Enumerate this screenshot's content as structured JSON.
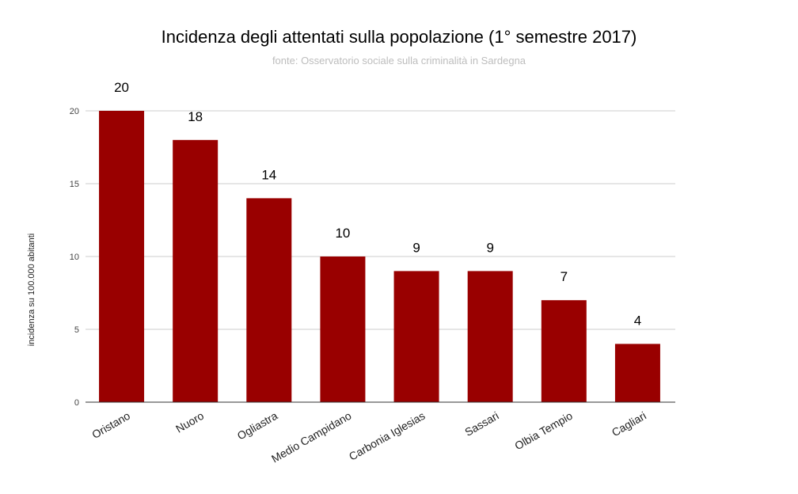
{
  "chart_data": {
    "type": "bar",
    "title": "Incidenza degli attentati sulla popolazione (1° semestre  2017)",
    "subtitle": "fonte: Osservatorio sociale sulla criminalità in Sardegna",
    "xlabel": "",
    "ylabel": "incidenza su 100.000 abitanti",
    "categories": [
      "Oristano",
      "Nuoro",
      "Ogliastra",
      "Medio Campidano",
      "Carbonia Iglesias",
      "Sassari",
      "Olbia Tempio",
      "Cagliari"
    ],
    "values": [
      20,
      18,
      14,
      10,
      9,
      9,
      7,
      4
    ],
    "data_labels": [
      "20",
      "18",
      "14",
      "10",
      "9",
      "9",
      "7",
      "4"
    ],
    "ylim": [
      0,
      20
    ],
    "yticks": [
      "0",
      "5",
      "10",
      "15",
      "20"
    ],
    "grid": true,
    "legend": "none",
    "bar_color": "#990000"
  }
}
